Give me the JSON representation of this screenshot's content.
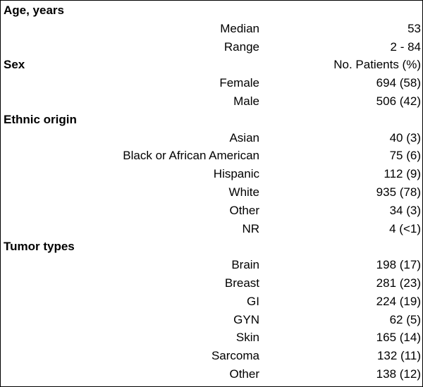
{
  "sections": [
    {
      "title": "Age, years",
      "header_value": "",
      "rows": [
        {
          "label": "Median",
          "value": "53"
        },
        {
          "label": "Range",
          "value": "2 - 84"
        }
      ]
    },
    {
      "title": "Sex",
      "header_value": "No. Patients (%)",
      "rows": [
        {
          "label": "Female",
          "value": "694 (58)"
        },
        {
          "label": "Male",
          "value": "506 (42)"
        }
      ]
    },
    {
      "title": "Ethnic origin",
      "header_value": "",
      "rows": [
        {
          "label": "Asian",
          "value": "40 (3)"
        },
        {
          "label": "Black or African American",
          "value": "75 (6)"
        },
        {
          "label": "Hispanic",
          "value": "112 (9)"
        },
        {
          "label": "White",
          "value": "935 (78)"
        },
        {
          "label": "Other",
          "value": "34 (3)"
        },
        {
          "label": "NR",
          "value": "4 (<1)"
        }
      ]
    },
    {
      "title": "Tumor types",
      "header_value": "",
      "rows": [
        {
          "label": "Brain",
          "value": "198 (17)"
        },
        {
          "label": "Breast",
          "value": "281 (23)"
        },
        {
          "label": "GI",
          "value": "224 (19)"
        },
        {
          "label": "GYN",
          "value": "62 (5)"
        },
        {
          "label": "Skin",
          "value": "165 (14)"
        },
        {
          "label": "Sarcoma",
          "value": "132 (11)"
        },
        {
          "label": "Other",
          "value": "138 (12)"
        }
      ]
    }
  ]
}
